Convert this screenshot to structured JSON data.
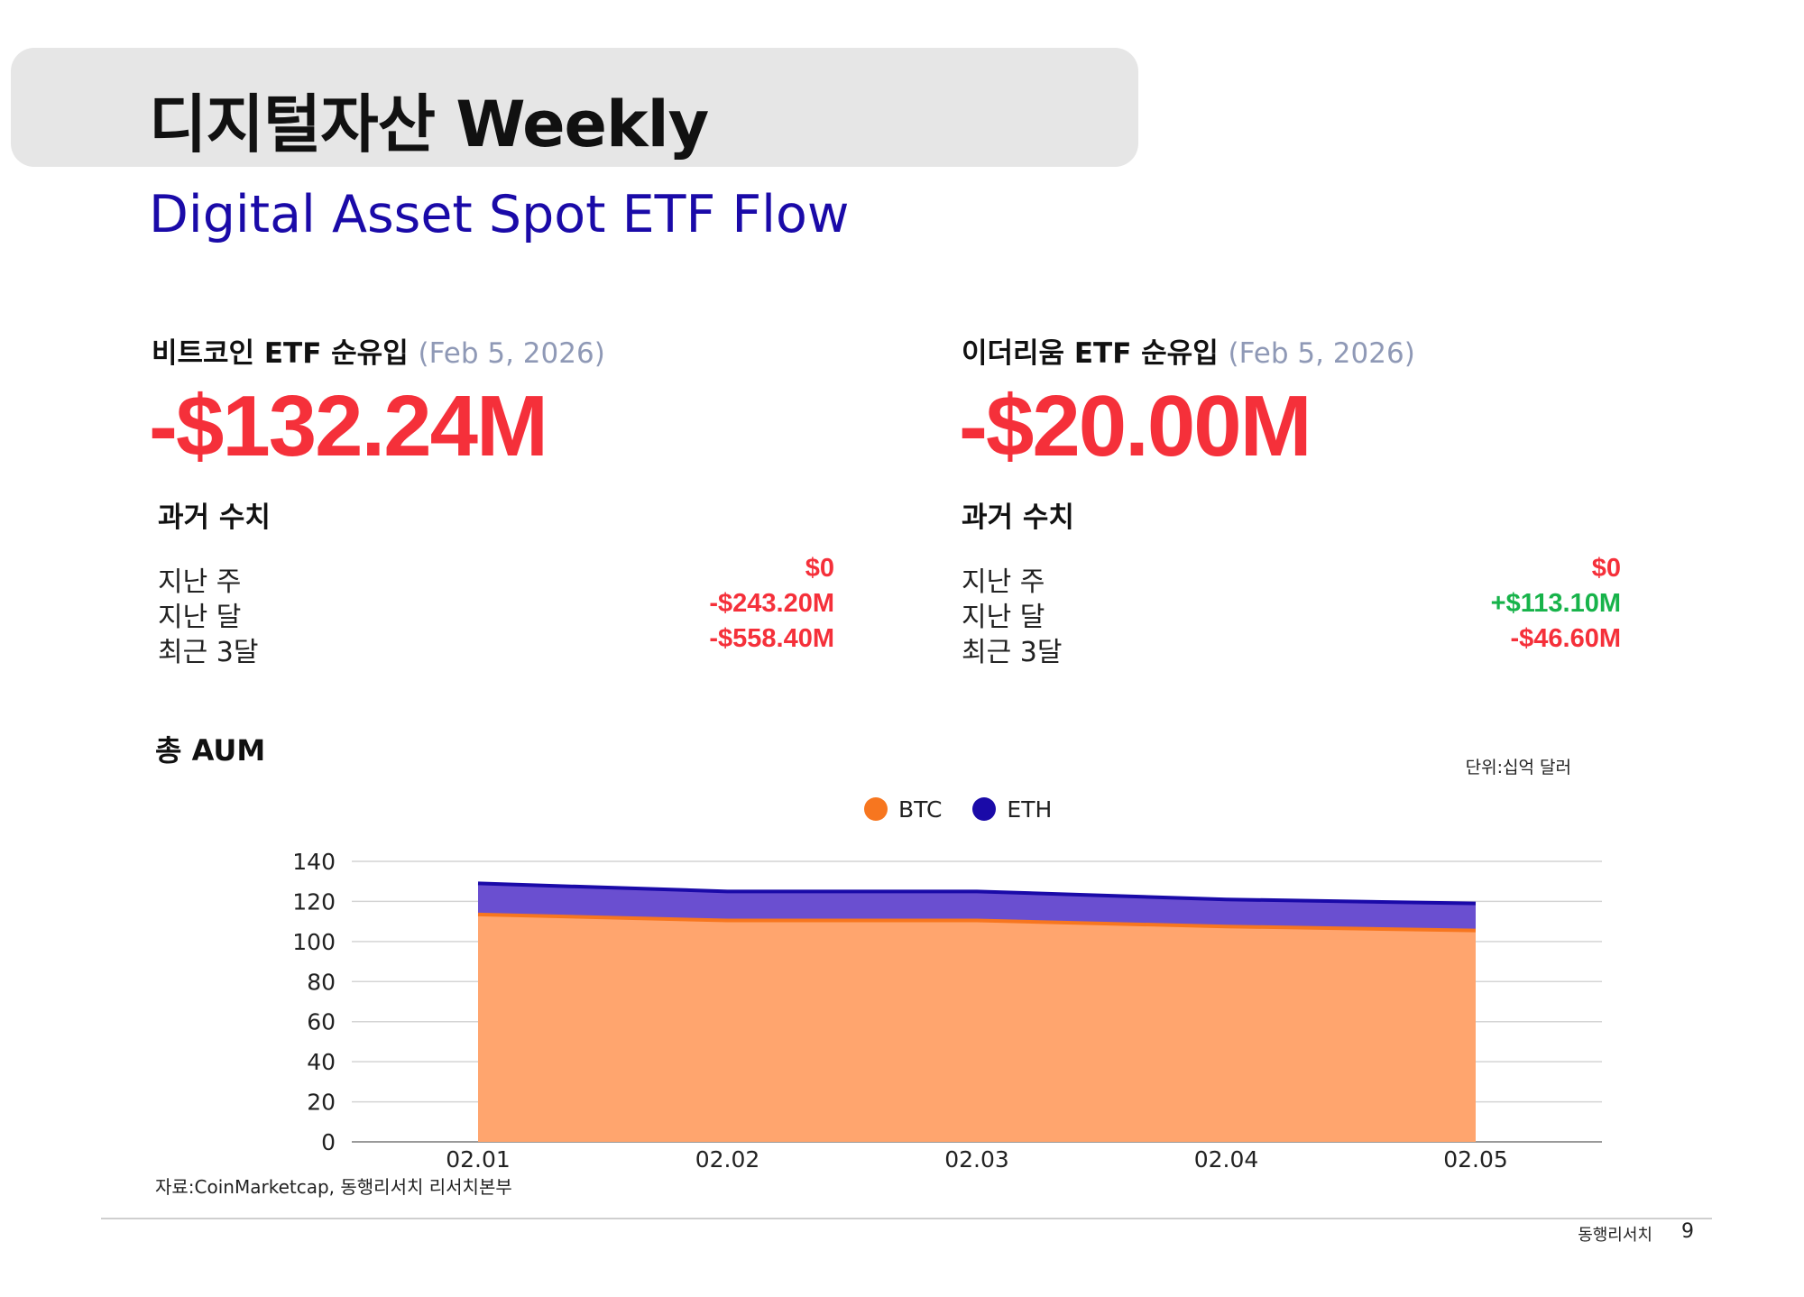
{
  "header": {
    "title": "디지털자산 Weekly",
    "subtitle": "Digital Asset Spot ETF Flow"
  },
  "btc_panel": {
    "heading": "비트코인 ETF 순유입",
    "date": "(Feb 5, 2026)",
    "value": "-$132.24M",
    "history_title": "과거 수치",
    "history": [
      {
        "label": "지난 주",
        "value": "$0",
        "sign": "neg"
      },
      {
        "label": "지난 달",
        "value": "-$243.20M",
        "sign": "neg"
      },
      {
        "label": "최근 3달",
        "value": "-$558.40M",
        "sign": "neg"
      }
    ]
  },
  "eth_panel": {
    "heading": "이더리움 ETF 순유입",
    "date": "(Feb 5, 2026)",
    "value": "-$20.00M",
    "history_title": "과거 수치",
    "history": [
      {
        "label": "지난 주",
        "value": "$0",
        "sign": "neg"
      },
      {
        "label": "지난 달",
        "value": "+$113.10M",
        "sign": "pos"
      },
      {
        "label": "최근 3달",
        "value": "-$46.60M",
        "sign": "neg"
      }
    ]
  },
  "aum": {
    "title": "총 AUM",
    "unit": "단위:십억 달러"
  },
  "chart_data": {
    "type": "area",
    "stacked": true,
    "x": [
      "02.01",
      "02.02",
      "02.03",
      "02.04",
      "02.05"
    ],
    "series": [
      {
        "name": "BTC",
        "color": "#f7761f",
        "fill": "#ffa56e",
        "values": [
          113.5,
          110.5,
          110.5,
          107.5,
          105.5
        ]
      },
      {
        "name": "ETH",
        "color": "#1a0aa8",
        "fill": "#6a4fd0",
        "values": [
          15.5,
          14.5,
          14.5,
          13.5,
          13.5
        ]
      }
    ],
    "yticks": [
      "0",
      "20",
      "40",
      "60",
      "80",
      "100",
      "120",
      "140"
    ],
    "ylim": [
      0,
      140
    ],
    "grid": true,
    "legend": "top-center"
  },
  "footer": {
    "source": "자료:CoinMarketcap, 동행리서치 리서치본부",
    "brand": "동행리서치",
    "page": "9"
  }
}
